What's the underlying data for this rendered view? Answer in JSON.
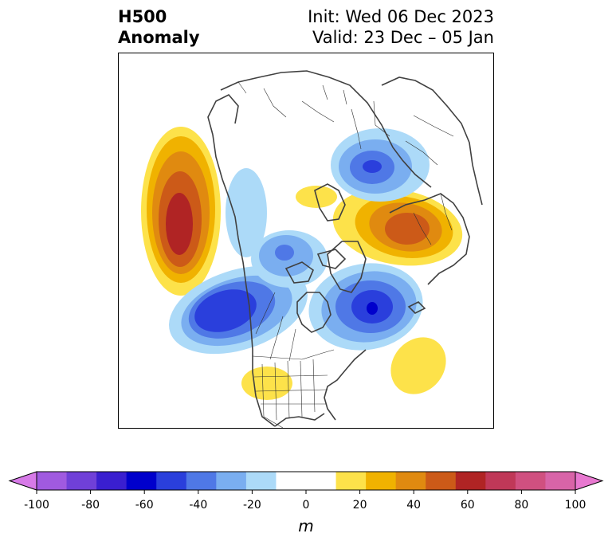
{
  "header": {
    "title_line1": "H500",
    "title_line2": "Anomaly",
    "init_text": "Init: Wed 06 Dec 2023",
    "valid_text": "Valid: 23 Dec – 05 Jan"
  },
  "colorbar": {
    "unit": "m",
    "tick_labels": [
      "-100",
      "-80",
      "-60",
      "-40",
      "-20",
      "0",
      "20",
      "40",
      "60",
      "80",
      "100"
    ],
    "colors": [
      "#d77ae8",
      "#a05ae0",
      "#7040d8",
      "#3a1fd0",
      "#0000cc",
      "#2a3fdc",
      "#4f78e6",
      "#7aaef0",
      "#acdaf8",
      "#ffffff",
      "#ffffff",
      "#fde24a",
      "#f0b200",
      "#e08a10",
      "#cc5a18",
      "#b02424",
      "#c03858",
      "#d05080",
      "#d864a8",
      "#e878d0"
    ]
  },
  "colors": {
    "pos1": "#fde24a",
    "pos2": "#f0b200",
    "pos3": "#e08a10",
    "pos4": "#cc5a18",
    "pos5": "#b02424",
    "neg1": "#acdaf8",
    "neg2": "#7aaef0",
    "neg3": "#4f78e6",
    "neg4": "#2a3fdc",
    "neg5": "#0000cc",
    "coast": "#404040",
    "border": "#303030"
  }
}
